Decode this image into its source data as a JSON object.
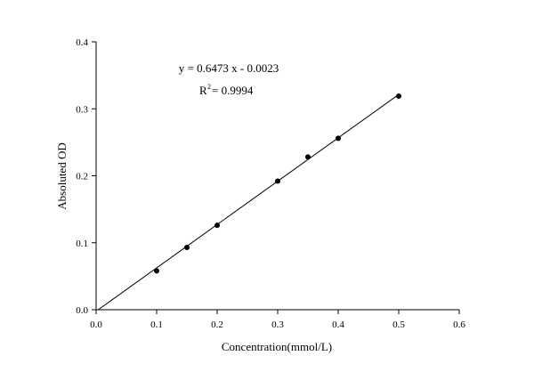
{
  "chart_data": {
    "type": "scatter",
    "title": "",
    "xlabel": "Concentration(mmol/L)",
    "ylabel": "Absoluted OD",
    "xlim": [
      0.0,
      0.6
    ],
    "ylim": [
      0.0,
      0.4
    ],
    "x_ticks": [
      "0.0",
      "0.1",
      "0.2",
      "0.3",
      "0.4",
      "0.5",
      "0.6"
    ],
    "y_ticks": [
      "0.0",
      "0.1",
      "0.2",
      "0.3",
      "0.4"
    ],
    "grid": false,
    "points": [
      {
        "x": 0.1,
        "y": 0.058
      },
      {
        "x": 0.15,
        "y": 0.093
      },
      {
        "x": 0.2,
        "y": 0.126
      },
      {
        "x": 0.3,
        "y": 0.192
      },
      {
        "x": 0.35,
        "y": 0.228
      },
      {
        "x": 0.4,
        "y": 0.256
      },
      {
        "x": 0.5,
        "y": 0.319
      }
    ],
    "fit": {
      "slope": 0.6473,
      "intercept": -0.0023,
      "x_range": [
        0.0,
        0.5
      ]
    },
    "annotations": {
      "equation": "y = 0.6473 x - 0.0023",
      "r2_prefix": "R",
      "r2_exponent": "2",
      "r2_value": " = 0.9994"
    }
  }
}
